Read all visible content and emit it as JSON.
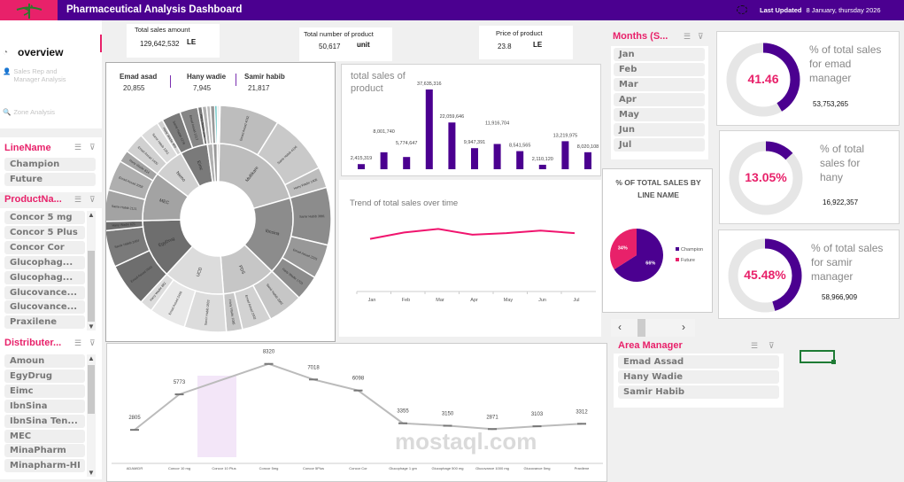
{
  "header": {
    "title": "Pharmaceutical Analysis Dashboard",
    "last_updated_label": "Last Updated",
    "last_updated_value": "8 January, thursday 2026",
    "logo_icon": "caduceus-icon",
    "accent": "#4b0090",
    "pink": "#e8216a"
  },
  "nav": {
    "items": [
      {
        "label": "overview",
        "icon": "stopwatch-icon"
      },
      {
        "label": "Sales Rep and Manager Analysis",
        "icon": "person-icon"
      },
      {
        "label": "Zone Analysis",
        "icon": "magnifier-icon"
      }
    ]
  },
  "kpis": [
    {
      "label": "Total sales amount",
      "value": "129,642,532",
      "unit": "LE"
    },
    {
      "label": "Total number of product",
      "value": "50,617",
      "unit": "unit"
    },
    {
      "label": "Price of product",
      "value": "23.8",
      "unit": "LE"
    }
  ],
  "slicers": {
    "line": {
      "title": "LineName",
      "items": [
        "Champion",
        "Future"
      ]
    },
    "product": {
      "title": "ProductNa...",
      "items": [
        "Concor 5 mg",
        "Concor 5 Plus",
        "Concor Cor",
        "Glucophag...",
        "Glucophag...",
        "Glucovance...",
        "Glucovance...",
        "Praxilene"
      ]
    },
    "distributer": {
      "title": "Distributer...",
      "items": [
        "Amoun",
        "EgyDrug",
        "Eimc",
        "IbnSina",
        "IbnSina Ten...",
        "MEC",
        "MinaPharm",
        "Minapharm-HI"
      ]
    },
    "months": {
      "title": "Months (S...",
      "items": [
        "Jan",
        "Feb",
        "Mar",
        "Apr",
        "May",
        "Jun",
        "Jul"
      ]
    },
    "manager": {
      "title": "Area Manager",
      "items": [
        "Emad Assad",
        "Hany Wadie",
        "Samir Habib"
      ]
    }
  },
  "managers_summary": [
    {
      "name": "Emad asad",
      "value": "20,855"
    },
    {
      "name": "Hany wadie",
      "value": "7,945"
    },
    {
      "name": "Samir habib",
      "value": "21,817"
    }
  ],
  "chart_data": [
    {
      "type": "sunburst",
      "inner": [
        {
          "name": "Multikare",
          "children": [
            {
              "name": "Emad Assad",
              "value": 4032
            },
            {
              "name": "Samir Habib",
              "value": 4106
            },
            {
              "name": "Hany Wadie",
              "value": 1405
            }
          ]
        },
        {
          "name": "Ibnsina",
          "children": [
            {
              "name": "Samir Habib",
              "value": 3881
            },
            {
              "name": "Emad Assad",
              "value": 2325
            },
            {
              "name": "Hany Wadie",
              "value": 1703
            }
          ]
        },
        {
          "name": "PDS",
          "children": [
            {
              "name": "Samir Habib",
              "value": 2362
            },
            {
              "name": "Emad Assad",
              "value": 2002
            },
            {
              "name": "Hany Wadie",
              "value": 1085
            }
          ]
        },
        {
          "name": "UCD",
          "children": [
            {
              "name": "Samir Habib",
              "value": 2833
            },
            {
              "name": "Emad Assad",
              "value": 2468
            },
            {
              "name": "Hany Wadie",
              "value": 882
            }
          ]
        },
        {
          "name": "EgyDrug",
          "children": [
            {
              "name": "Emad Assad",
              "value": 2940
            },
            {
              "name": "Samir Habib",
              "value": 2464
            },
            {
              "name": "Hany Wadie",
              "value": 621
            }
          ]
        },
        {
          "name": "MEC",
          "children": [
            {
              "name": "Samir Habib",
              "value": 2121
            },
            {
              "name": "Emad Assad",
              "value": 2058
            },
            {
              "name": "Hany Wadie",
              "value": 814
            }
          ]
        },
        {
          "name": "Nemo",
          "children": [
            {
              "name": "Emad Assad",
              "value": 1400
            },
            {
              "name": "Samir Habib",
              "value": 1351
            },
            {
              "name": "Hany Wadie",
              "value": 400
            }
          ]
        },
        {
          "name": "Eimc",
          "children": [
            {
              "name": "Samir Habib",
              "value": 1276
            },
            {
              "name": "Emad Assad",
              "value": 1217
            },
            {
              "name": "Hany Wadie",
              "value": 300
            }
          ]
        },
        {
          "name": "",
          "children": [
            {
              "name": "",
              "value": 300
            },
            {
              "name": "",
              "value": 250
            }
          ]
        },
        {
          "name": "",
          "children": [
            {
              "name": "",
              "value": 300
            },
            {
              "name": "",
              "value": 150
            }
          ]
        },
        {
          "name": "",
          "children": [
            {
              "name": "",
              "value": 120
            },
            {
              "name": "",
              "value": 80
            }
          ]
        }
      ]
    },
    {
      "type": "bar",
      "title": "total sales of product",
      "values": [
        2415319,
        8001740,
        5774647,
        37635316,
        22059646,
        9947391,
        11916704,
        8541565,
        2110120,
        13219975,
        8020108
      ],
      "labels": [
        "2,415,319",
        "8,001,740",
        "5,774,647",
        "37,635,316",
        "22,059,646",
        "9,947,391",
        "11,916,704",
        "8,541,565",
        "2,110,120",
        "13,219,975",
        "8,020,108"
      ],
      "color": "#4b0090"
    },
    {
      "type": "line",
      "title": "Trend of total sales over time",
      "categories": [
        "Jan",
        "Feb",
        "Mar",
        "Apr",
        "May",
        "Jun",
        "Jul"
      ],
      "values": [
        16500000,
        18500000,
        19600000,
        17800000,
        18300000,
        19100000,
        18300000
      ],
      "color": "#f0146e"
    },
    {
      "type": "pie",
      "title": "% OF TOTAL SALES BY LINE NAME",
      "slices": [
        {
          "name": "Champion",
          "value": 66,
          "label": "66%",
          "color": "#4b0090"
        },
        {
          "name": "Future",
          "value": 34,
          "label": "34%",
          "color": "#e8216a"
        }
      ],
      "legend": "right"
    },
    {
      "type": "line",
      "categories": [
        "ADAMIDR",
        "Concor 10 mg",
        "Concor 10 Plus",
        "Concor 5mg",
        "Concor 5Plus",
        "Concor Cor",
        "Glucophage 1 gm",
        "Glucophage 500 mg",
        "Glucovance 1000 mg",
        "Glucovance 5mg",
        "Praxilene"
      ],
      "values": [
        2805,
        5773,
        null,
        8320,
        7018,
        6098,
        3355,
        3150,
        2871,
        3103,
        3312
      ],
      "labels": [
        "2805",
        "5773",
        "",
        "8320",
        "7018",
        "6098",
        "3355",
        "3150",
        "2871",
        "3103",
        "3312"
      ],
      "color": "#bbbbbb"
    }
  ],
  "donuts": [
    {
      "pct": 41.46,
      "label": "41.46",
      "text": "% of total sales for emad manager",
      "value": "53,753,265"
    },
    {
      "pct": 13.05,
      "label": "13.05%",
      "text": "% of total sales for hany",
      "value": "16,922,357"
    },
    {
      "pct": 45.48,
      "label": "45.48%",
      "text": "% of total sales for samir manager",
      "value": "58,966,909"
    }
  ],
  "watermark": {
    "text": "mostaql.com"
  }
}
